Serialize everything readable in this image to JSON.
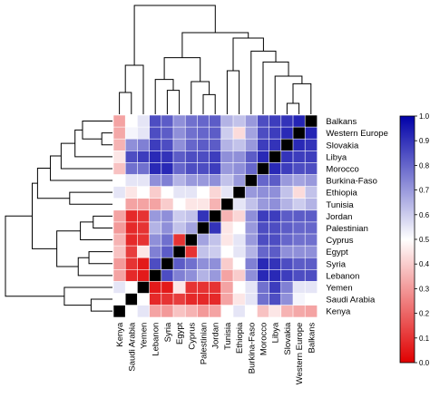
{
  "chart_data": {
    "type": "heatmap",
    "title": "",
    "row_labels": [
      "Balkans",
      "Western Europe",
      "Slovakia",
      "Libya",
      "Morocco",
      "Burkina-Faso",
      "Ethiopia",
      "Tunisia",
      "Jordan",
      "Palestinian",
      "Cyprus",
      "Egypt",
      "Syria",
      "Lebanon",
      "Yemen",
      "Saudi Arabia",
      "Kenya"
    ],
    "col_labels": [
      "Kenya",
      "Saudi Arabia",
      "Yemen",
      "Lebanon",
      "Syria",
      "Egypt",
      "Cyprus",
      "Palestinian",
      "Jordan",
      "Tunisia",
      "Ethiopia",
      "Burkina-Faso",
      "Morocco",
      "Libya",
      "Slovakia",
      "Western Europe",
      "Balkans"
    ],
    "matrix": [
      [
        0.32,
        0.5,
        0.55,
        0.85,
        0.82,
        0.72,
        0.78,
        0.8,
        0.82,
        0.65,
        0.62,
        0.7,
        0.85,
        0.88,
        0.9,
        0.93,
        1.0
      ],
      [
        0.33,
        0.52,
        0.55,
        0.85,
        0.82,
        0.72,
        0.78,
        0.8,
        0.82,
        0.6,
        0.43,
        0.68,
        0.85,
        0.88,
        0.92,
        1.0,
        0.93
      ],
      [
        0.35,
        0.72,
        0.75,
        0.88,
        0.85,
        0.72,
        0.8,
        0.82,
        0.82,
        0.65,
        0.62,
        0.7,
        0.88,
        0.9,
        1.0,
        0.92,
        0.9
      ],
      [
        0.45,
        0.85,
        0.88,
        0.92,
        0.9,
        0.82,
        0.85,
        0.85,
        0.88,
        0.72,
        0.72,
        0.82,
        0.92,
        1.0,
        0.9,
        0.88,
        0.88
      ],
      [
        0.38,
        0.78,
        0.78,
        0.92,
        0.92,
        0.8,
        0.85,
        0.85,
        0.88,
        0.7,
        0.72,
        0.8,
        1.0,
        0.92,
        0.88,
        0.85,
        0.85
      ],
      [
        0.5,
        0.55,
        0.55,
        0.72,
        0.75,
        0.65,
        0.7,
        0.7,
        0.72,
        0.62,
        0.7,
        1.0,
        0.8,
        0.82,
        0.7,
        0.68,
        0.7
      ],
      [
        0.55,
        0.45,
        0.5,
        0.4,
        0.5,
        0.55,
        0.55,
        0.5,
        0.42,
        0.55,
        1.0,
        0.7,
        0.72,
        0.72,
        0.62,
        0.43,
        0.62
      ],
      [
        0.5,
        0.32,
        0.32,
        0.32,
        0.4,
        0.5,
        0.45,
        0.45,
        0.35,
        1.0,
        0.55,
        0.62,
        0.7,
        0.72,
        0.65,
        0.6,
        0.65
      ],
      [
        0.32,
        0.08,
        0.1,
        0.7,
        0.72,
        0.6,
        0.62,
        0.9,
        1.0,
        0.35,
        0.42,
        0.72,
        0.88,
        0.88,
        0.82,
        0.82,
        0.82
      ],
      [
        0.3,
        0.08,
        0.1,
        0.65,
        0.72,
        0.62,
        0.68,
        1.0,
        0.9,
        0.45,
        0.5,
        0.7,
        0.85,
        0.85,
        0.82,
        0.8,
        0.8
      ],
      [
        0.35,
        0.08,
        0.1,
        0.72,
        0.78,
        0.1,
        1.0,
        0.68,
        0.62,
        0.45,
        0.55,
        0.7,
        0.85,
        0.85,
        0.8,
        0.78,
        0.78
      ],
      [
        0.38,
        0.12,
        0.45,
        0.75,
        0.82,
        1.0,
        0.1,
        0.62,
        0.6,
        0.5,
        0.55,
        0.65,
        0.8,
        0.82,
        0.72,
        0.72,
        0.72
      ],
      [
        0.3,
        0.1,
        0.05,
        0.85,
        1.0,
        0.82,
        0.78,
        0.72,
        0.72,
        0.4,
        0.5,
        0.75,
        0.92,
        0.9,
        0.85,
        0.82,
        0.82
      ],
      [
        0.32,
        0.08,
        0.05,
        1.0,
        0.85,
        0.75,
        0.72,
        0.65,
        0.7,
        0.32,
        0.4,
        0.72,
        0.92,
        0.92,
        0.88,
        0.85,
        0.85
      ],
      [
        0.55,
        0.5,
        1.0,
        0.05,
        0.05,
        0.45,
        0.1,
        0.1,
        0.1,
        0.32,
        0.5,
        0.55,
        0.78,
        0.88,
        0.75,
        0.55,
        0.55
      ],
      [
        0.5,
        1.0,
        0.5,
        0.08,
        0.1,
        0.12,
        0.08,
        0.08,
        0.08,
        0.32,
        0.45,
        0.55,
        0.78,
        0.85,
        0.72,
        0.52,
        0.5
      ],
      [
        1.0,
        0.5,
        0.55,
        0.32,
        0.3,
        0.38,
        0.35,
        0.3,
        0.32,
        0.5,
        0.55,
        0.5,
        0.38,
        0.45,
        0.35,
        0.33,
        0.32
      ]
    ],
    "colorbar": {
      "min": 0.0,
      "max": 1.0,
      "ticks": [
        "0.0",
        "0.1",
        "0.2",
        "0.3",
        "0.4",
        "0.5",
        "0.6",
        "0.7",
        "0.8",
        "0.9",
        "1.0"
      ],
      "colors": [
        "#e00000",
        "#ffffff",
        "#0000a8"
      ]
    },
    "diagonal_color": "#000000"
  }
}
